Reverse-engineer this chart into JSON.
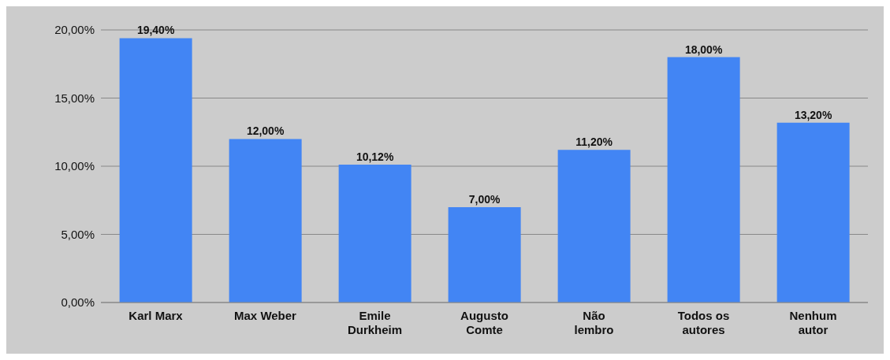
{
  "chart_data": {
    "type": "bar",
    "categories": [
      "Karl Marx",
      "Max Weber",
      "Emile Durkheim",
      "Augusto Comte",
      "Não lembro",
      "Todos os autores",
      "Nenhum autor"
    ],
    "values": [
      19.4,
      12.0,
      10.12,
      7.0,
      11.2,
      18.0,
      13.2
    ],
    "value_labels": [
      "19,40%",
      "12,00%",
      "10,12%",
      "7,00%",
      "11,20%",
      "18,00%",
      "13,20%"
    ],
    "color": "#4285f4",
    "ylim": [
      0,
      20
    ],
    "yticks": [
      {
        "value": 0,
        "label": "0,00%"
      },
      {
        "value": 5,
        "label": "5,00%"
      },
      {
        "value": 10,
        "label": "10,00%"
      },
      {
        "value": 15,
        "label": "15,00%"
      },
      {
        "value": 20,
        "label": "20,00%"
      }
    ],
    "grid": "y",
    "legend": false
  }
}
